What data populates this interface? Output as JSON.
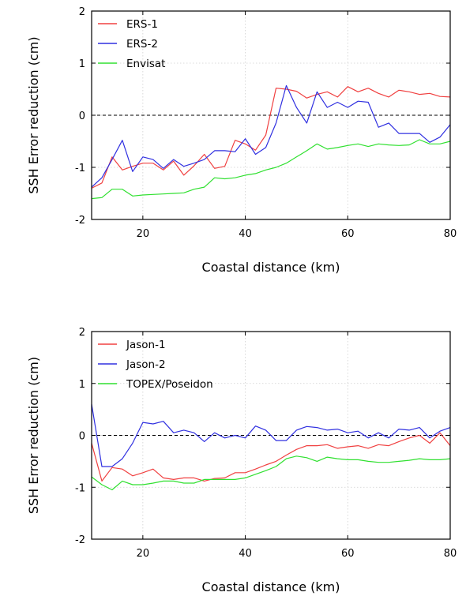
{
  "chart_data": [
    {
      "type": "line",
      "xlabel": "Coastal distance (km)",
      "ylabel": "SSH Error reduction (cm)",
      "xlim": [
        10,
        80
      ],
      "ylim": [
        -2,
        2
      ],
      "xticks": [
        20,
        40,
        60,
        80
      ],
      "yticks": [
        -2,
        -1,
        0,
        1,
        2
      ],
      "grid": true,
      "legend_position": "top-left",
      "reference_line": {
        "y": 0,
        "style": "dashed"
      },
      "series": [
        {
          "name": "ERS-1",
          "color": "#f04040",
          "x": [
            10,
            12,
            14,
            16,
            18,
            20,
            22,
            24,
            26,
            28,
            30,
            32,
            34,
            36,
            38,
            40,
            42,
            44,
            46,
            48,
            50,
            52,
            54,
            56,
            58,
            60,
            62,
            64,
            66,
            68,
            70,
            72,
            74,
            76,
            78,
            80
          ],
          "y": [
            -1.4,
            -1.3,
            -0.8,
            -1.05,
            -0.98,
            -0.92,
            -0.92,
            -1.05,
            -0.88,
            -1.15,
            -0.97,
            -0.75,
            -1.02,
            -0.98,
            -0.48,
            -0.55,
            -0.67,
            -0.38,
            0.52,
            0.5,
            0.46,
            0.33,
            0.4,
            0.45,
            0.35,
            0.55,
            0.45,
            0.52,
            0.42,
            0.35,
            0.48,
            0.45,
            0.4,
            0.42,
            0.36,
            0.35
          ]
        },
        {
          "name": "ERS-2",
          "color": "#3030e0",
          "x": [
            10,
            12,
            14,
            16,
            18,
            20,
            22,
            24,
            26,
            28,
            30,
            32,
            34,
            36,
            38,
            40,
            42,
            44,
            46,
            48,
            50,
            52,
            54,
            56,
            58,
            60,
            62,
            64,
            66,
            68,
            70,
            72,
            74,
            76,
            78,
            80
          ],
          "y": [
            -1.38,
            -1.2,
            -0.85,
            -0.48,
            -1.08,
            -0.8,
            -0.85,
            -1.02,
            -0.85,
            -0.98,
            -0.92,
            -0.85,
            -0.68,
            -0.68,
            -0.7,
            -0.45,
            -0.75,
            -0.62,
            -0.15,
            0.57,
            0.15,
            -0.15,
            0.45,
            0.15,
            0.25,
            0.15,
            0.27,
            0.25,
            -0.23,
            -0.15,
            -0.35,
            -0.35,
            -0.35,
            -0.52,
            -0.42,
            -0.18
          ]
        },
        {
          "name": "Envisat",
          "color": "#30e030",
          "x": [
            10,
            12,
            14,
            16,
            18,
            20,
            22,
            24,
            26,
            28,
            30,
            32,
            34,
            36,
            38,
            40,
            42,
            44,
            46,
            48,
            50,
            52,
            54,
            56,
            58,
            60,
            62,
            64,
            66,
            68,
            70,
            72,
            74,
            76,
            78,
            80
          ],
          "y": [
            -1.6,
            -1.58,
            -1.42,
            -1.42,
            -1.55,
            -1.53,
            -1.52,
            -1.51,
            -1.5,
            -1.49,
            -1.42,
            -1.38,
            -1.2,
            -1.22,
            -1.2,
            -1.15,
            -1.12,
            -1.05,
            -1.0,
            -0.92,
            -0.8,
            -0.68,
            -0.55,
            -0.65,
            -0.62,
            -0.58,
            -0.55,
            -0.6,
            -0.55,
            -0.57,
            -0.58,
            -0.57,
            -0.47,
            -0.55,
            -0.55,
            -0.5
          ]
        }
      ]
    },
    {
      "type": "line",
      "xlabel": "Coastal distance (km)",
      "ylabel": "SSH Error reduction (cm)",
      "xlim": [
        10,
        80
      ],
      "ylim": [
        -2,
        2
      ],
      "xticks": [
        20,
        40,
        60,
        80
      ],
      "yticks": [
        -2,
        -1,
        0,
        1,
        2
      ],
      "grid": true,
      "legend_position": "top-left",
      "reference_line": {
        "y": 0,
        "style": "dashed"
      },
      "series": [
        {
          "name": "Jason-1",
          "color": "#f04040",
          "x": [
            10,
            12,
            14,
            16,
            18,
            20,
            22,
            24,
            26,
            28,
            30,
            32,
            34,
            36,
            38,
            40,
            42,
            44,
            46,
            48,
            50,
            52,
            54,
            56,
            58,
            60,
            62,
            64,
            66,
            68,
            70,
            72,
            74,
            76,
            78,
            80
          ],
          "y": [
            -0.15,
            -0.88,
            -0.62,
            -0.65,
            -0.78,
            -0.72,
            -0.65,
            -0.82,
            -0.85,
            -0.82,
            -0.82,
            -0.88,
            -0.83,
            -0.82,
            -0.72,
            -0.72,
            -0.65,
            -0.57,
            -0.5,
            -0.38,
            -0.27,
            -0.2,
            -0.2,
            -0.18,
            -0.25,
            -0.22,
            -0.2,
            -0.25,
            -0.18,
            -0.2,
            -0.12,
            -0.05,
            0.0,
            -0.15,
            0.05,
            -0.2
          ]
        },
        {
          "name": "Jason-2",
          "color": "#3030e0",
          "x": [
            10,
            12,
            14,
            16,
            18,
            20,
            22,
            24,
            26,
            28,
            30,
            32,
            34,
            36,
            38,
            40,
            42,
            44,
            46,
            48,
            50,
            52,
            54,
            56,
            58,
            60,
            62,
            64,
            66,
            68,
            70,
            72,
            74,
            76,
            78,
            80
          ],
          "y": [
            0.6,
            -0.6,
            -0.6,
            -0.45,
            -0.15,
            0.25,
            0.22,
            0.27,
            0.05,
            0.1,
            0.05,
            -0.12,
            0.05,
            -0.05,
            0.0,
            -0.05,
            0.18,
            0.1,
            -0.1,
            -0.1,
            0.1,
            0.17,
            0.15,
            0.1,
            0.12,
            0.05,
            0.08,
            -0.05,
            0.05,
            -0.05,
            0.12,
            0.1,
            0.15,
            -0.05,
            0.08,
            0.15
          ]
        },
        {
          "name": "TOPEX/Poseidon",
          "color": "#30e030",
          "x": [
            10,
            12,
            14,
            16,
            18,
            20,
            22,
            24,
            26,
            28,
            30,
            32,
            34,
            36,
            38,
            40,
            42,
            44,
            46,
            48,
            50,
            52,
            54,
            56,
            58,
            60,
            62,
            64,
            66,
            68,
            70,
            72,
            74,
            76,
            78,
            80
          ],
          "y": [
            -0.8,
            -0.95,
            -1.05,
            -0.88,
            -0.95,
            -0.95,
            -0.92,
            -0.88,
            -0.88,
            -0.92,
            -0.92,
            -0.85,
            -0.85,
            -0.85,
            -0.85,
            -0.82,
            -0.75,
            -0.68,
            -0.6,
            -0.45,
            -0.4,
            -0.43,
            -0.5,
            -0.42,
            -0.45,
            -0.47,
            -0.47,
            -0.5,
            -0.52,
            -0.52,
            -0.5,
            -0.48,
            -0.45,
            -0.47,
            -0.47,
            -0.45
          ]
        }
      ]
    }
  ]
}
